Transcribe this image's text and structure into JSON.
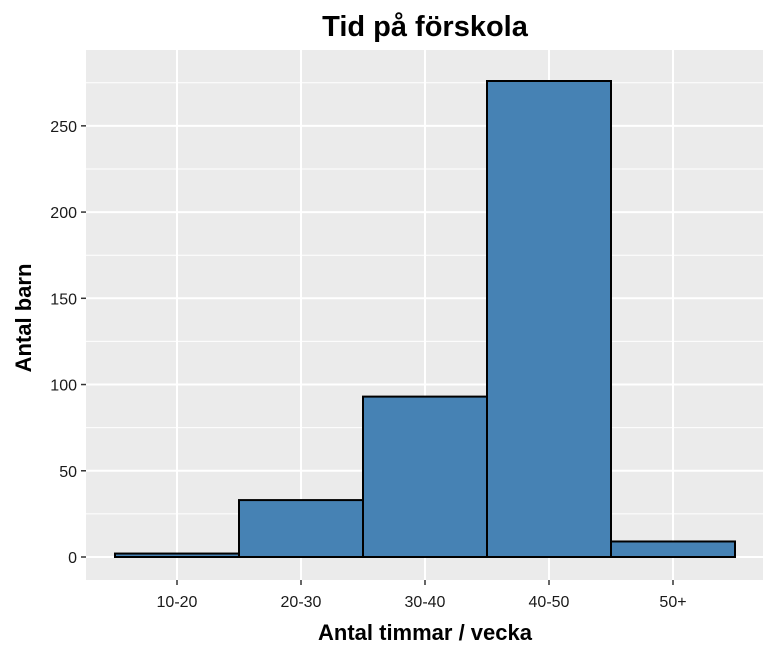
{
  "chart_data": {
    "type": "bar",
    "title": "Tid på förskola",
    "xlabel": "Antal timmar / vecka",
    "ylabel": "Antal barn",
    "categories": [
      "10-20",
      "20-30",
      "30-40",
      "40-50",
      "50+"
    ],
    "values": [
      2,
      33,
      93,
      276,
      9
    ],
    "ylim": [
      0,
      290
    ],
    "yticks": [
      0,
      50,
      100,
      150,
      200,
      250
    ],
    "grid": true,
    "legend": "none",
    "colors": {
      "bar_fill": "#4682B4",
      "bar_stroke": "#000000",
      "panel_background": "#EBEBEB",
      "grid": "#FFFFFF",
      "tick_mark": "#333333"
    }
  }
}
